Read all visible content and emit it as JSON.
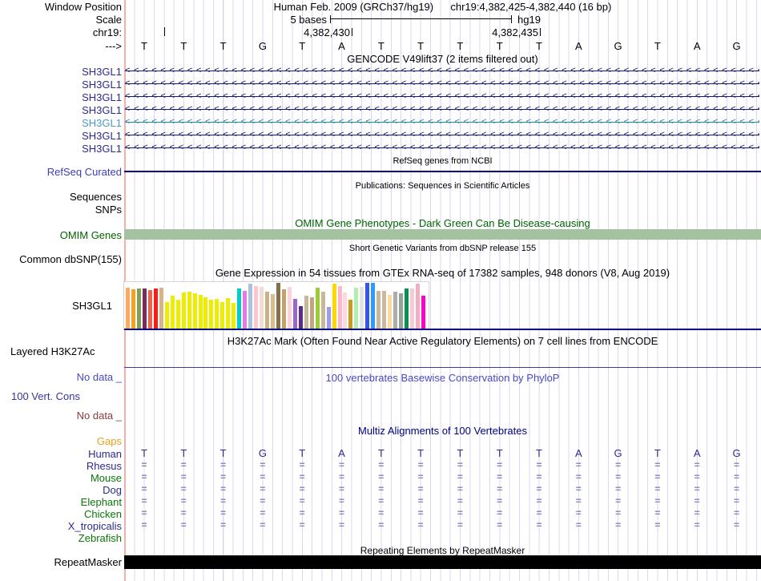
{
  "header": {
    "window_position_label": "Window Position",
    "assembly_title": "Human Feb. 2009 (GRCh37/hg19)",
    "position_title": "chr19:4,382,425-4,382,440 (16 bp)",
    "scale_label": "Scale",
    "scale_value": "5 bases",
    "assembly_tag": "hg19",
    "chrom_label": "chr19:",
    "ruler_tick_labels": [
      "4,382,430",
      "4,382,435"
    ],
    "strand_label": "--->"
  },
  "sequence": {
    "bases": [
      "T",
      "T",
      "T",
      "G",
      "T",
      "A",
      "T",
      "T",
      "T",
      "T",
      "T",
      "A",
      "G",
      "T",
      "A",
      "G"
    ]
  },
  "tracks": {
    "gencode": {
      "title": "GENCODE V49lift37 (2 items filtered out)",
      "arrow_char": "<",
      "genes": [
        {
          "label": "SH3GL1",
          "label_color": "#2B2B8F",
          "arrow_color": "#16166B"
        },
        {
          "label": "SH3GL1",
          "label_color": "#2B2B8F",
          "arrow_color": "#16166B"
        },
        {
          "label": "SH3GL1",
          "label_color": "#2B2B8F",
          "arrow_color": "#16166B"
        },
        {
          "label": "SH3GL1",
          "label_color": "#2B2B8F",
          "arrow_color": "#16166B"
        },
        {
          "label": "SH3GL1",
          "label_color": "#4A9AC8",
          "arrow_color": "#1F86A0"
        },
        {
          "label": "SH3GL1",
          "label_color": "#2B2B8F",
          "arrow_color": "#16166B"
        },
        {
          "label": "SH3GL1",
          "label_color": "#2B2B8F",
          "arrow_color": "#16166B"
        }
      ]
    },
    "refseq": {
      "subtitle": "RefSeq genes from NCBI",
      "label": "RefSeq Curated",
      "label_color": "#3C3CB4",
      "line_color": "#000080"
    },
    "publications": {
      "title": "Publications: Sequences in Scientific Articles",
      "sequences_label": "Sequences",
      "snps_label": "SNPs"
    },
    "omim": {
      "title": "OMIM Gene Phenotypes - Dark Green Can Be Disease-causing",
      "label": "OMIM Genes",
      "text_color": "#006400",
      "bar_color": "#A5C2A0"
    },
    "dbsnp": {
      "title": "Short Genetic Variants from dbSNP release 155",
      "label": "Common dbSNP(155)"
    },
    "gtex": {
      "title": "Gene Expression in 54 tissues from GTEx RNA-seq of 17382 samples, 948 donors (V8, Aug 2019)",
      "label": "SH3GL1",
      "baseline_color": "#000080"
    },
    "h3k27ac": {
      "title": "H3K27Ac Mark (Often Found Near Active Regulatory Elements) on 7 cell lines from ENCODE",
      "label": "Layered H3K27Ac",
      "line_color": "#3A3A9C"
    },
    "conservation": {
      "no_data_top": "No data _",
      "no_data_top_color": "#4A4ABF",
      "title": "100 vertebrates Basewise Conservation by PhyloP",
      "title_color": "#4A4ABF",
      "label": "100 Vert. Cons",
      "label_color": "#333399",
      "no_data_bottom": "No data _",
      "no_data_bottom_color": "#8B3A3A"
    },
    "multiz": {
      "title": "Multiz Alignments of 100 Vertebrates",
      "title_color": "#000080",
      "gaps_label": "Gaps",
      "gaps_color": "#E8A020",
      "base_color": "#2B2B8F",
      "match_color": "#8585BC",
      "match_glyph": "=",
      "species": [
        {
          "name": "Human",
          "color": "#2B2B8F",
          "type": "bases"
        },
        {
          "name": "Rhesus",
          "color": "#2B2B8F",
          "type": "align"
        },
        {
          "name": "Mouse",
          "color": "#0A770A",
          "type": "align"
        },
        {
          "name": "Dog",
          "color": "#2B2B8F",
          "type": "align"
        },
        {
          "name": "Elephant",
          "color": "#0A770A",
          "type": "align"
        },
        {
          "name": "Chicken",
          "color": "#0A770A",
          "type": "align"
        },
        {
          "name": "X_tropicalis",
          "color": "#2B2B8F",
          "type": "align"
        },
        {
          "name": "Zebrafish",
          "color": "#0A770A",
          "type": "empty"
        }
      ]
    },
    "repeatmasker": {
      "title": "Repeating Elements by RepeatMasker",
      "label": "RepeatMasker",
      "bar_color": "#000000"
    }
  },
  "chart_data": {
    "type": "bar",
    "title": "Gene Expression in 54 tissues from GTEx RNA-seq of 17382 samples, 948 donors (V8, Aug 2019)",
    "gene": "SH3GL1",
    "note": "54 GTEx tissue bars; values are bar heights in px of plot (max 58), tissue names not visible in screenshot",
    "ylim": [
      0,
      58
    ],
    "values": [
      52,
      50,
      51,
      51,
      49,
      51,
      52,
      34,
      42,
      37,
      46,
      47,
      45,
      43,
      40,
      37,
      38,
      34,
      39,
      33,
      51,
      48,
      57,
      54,
      53,
      47,
      44,
      58,
      50,
      53,
      38,
      29,
      42,
      40,
      52,
      47,
      28,
      57,
      54,
      46,
      37,
      52,
      53,
      58,
      58,
      48,
      48,
      43,
      47,
      45,
      51,
      51,
      57,
      42
    ],
    "colors": [
      "#FFA860",
      "#F5A01E",
      "#7FA05A",
      "#7D2A5A",
      "#F0604A",
      "#FF1A1A",
      "#D4B488",
      "#EDED00",
      "#EDED00",
      "#EDED00",
      "#EDED00",
      "#EDED00",
      "#EDED00",
      "#EDED00",
      "#EDED00",
      "#EDED00",
      "#EDED00",
      "#EDED00",
      "#EDED00",
      "#EDED00",
      "#00CCCC",
      "#E878E8",
      "#A8C4DC",
      "#FFC4CC",
      "#EFDCD2",
      "#C9B285",
      "#D9BC8C",
      "#857049",
      "#C3A169",
      "#FBD3DC",
      "#9A68C8",
      "#5C2D85",
      "#C9B79C",
      "#C2A47E",
      "#9ACD32",
      "#C8B89A",
      "#9C9CE8",
      "#FFD700",
      "#FFB6C8",
      "#FBD9DE",
      "#CC9922",
      "#B2EDB2",
      "#E3E3E3",
      "#3355E8",
      "#2E9AFF",
      "#C9B79C",
      "#CDB79E",
      "#FFD9A0",
      "#ACACAC",
      "#93A493",
      "#089050",
      "#F6CBD4",
      "#F2AEC0",
      "#FF00CC"
    ]
  },
  "ui_colors": {
    "grid_line": "#D8D8F2",
    "cursor_line": "#F7AFA9"
  }
}
